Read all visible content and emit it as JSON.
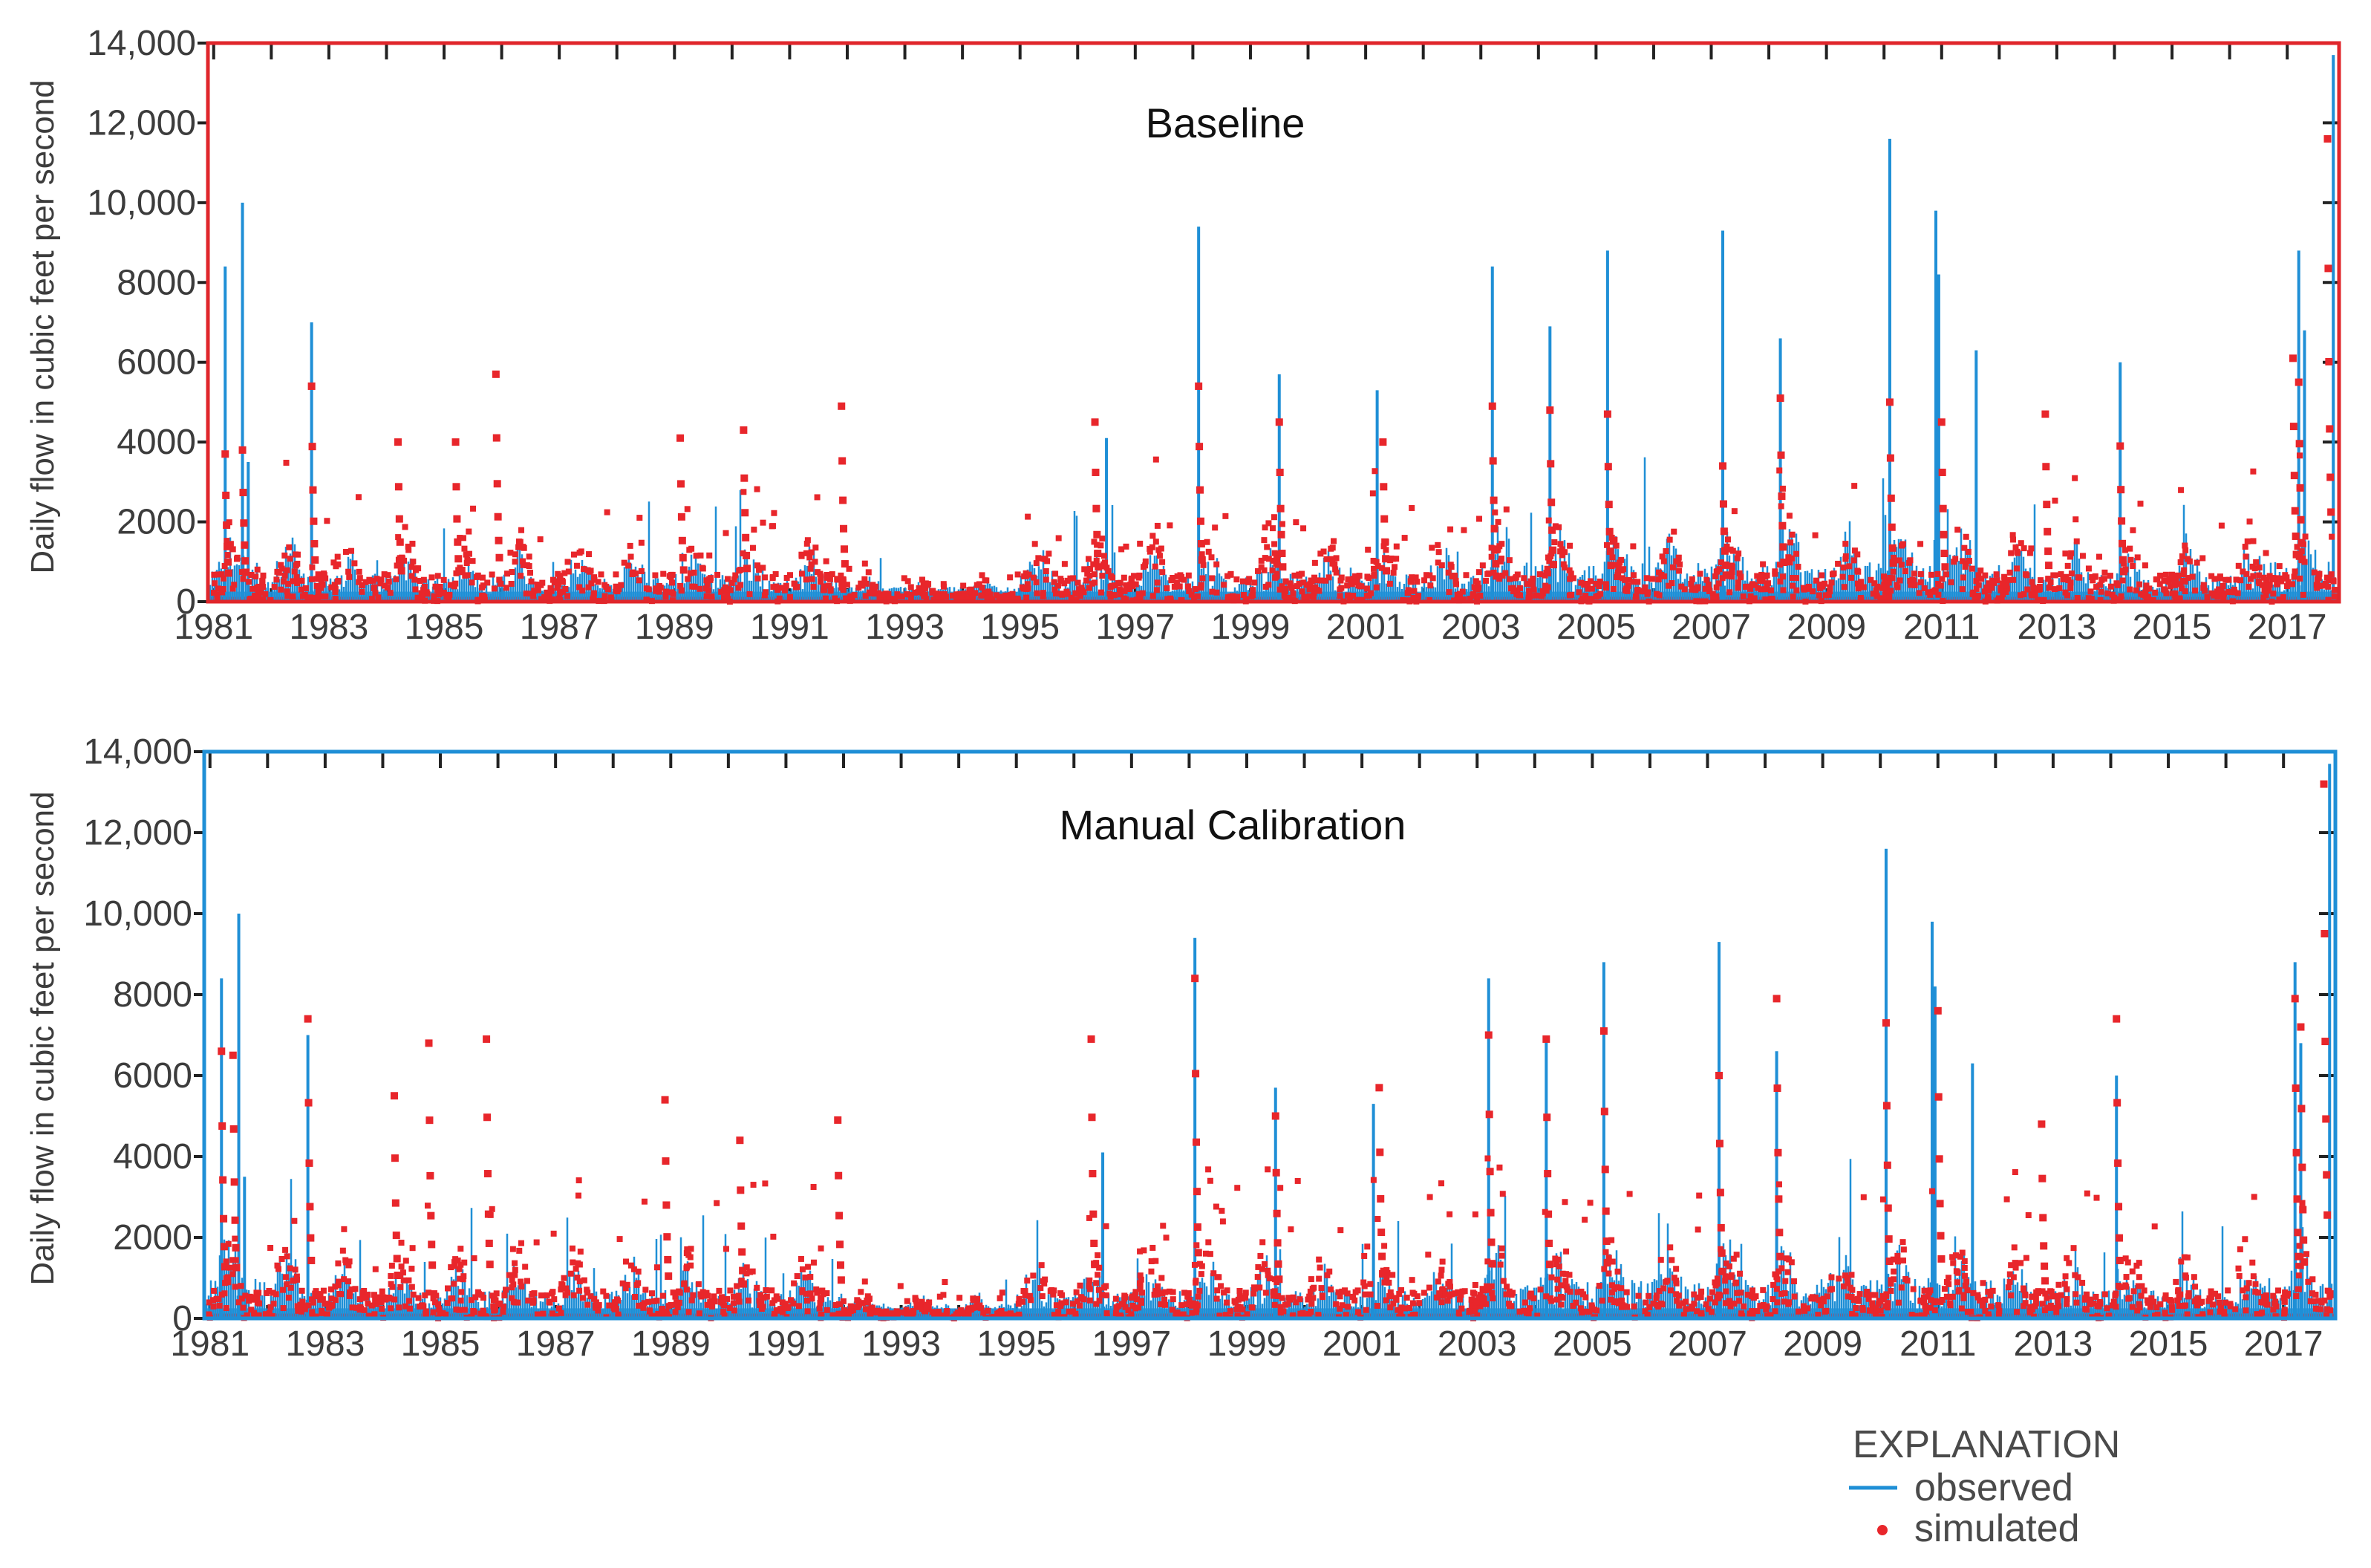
{
  "chart_data": [
    {
      "type": "line",
      "title": "Baseline",
      "xlabel": "",
      "ylabel": "Daily flow in cubic feet per second",
      "xlim": [
        1980.9,
        2017.9
      ],
      "ylim": [
        0,
        14000
      ],
      "x_tick_labels": [
        "1981",
        "1983",
        "1985",
        "1987",
        "1989",
        "1991",
        "1993",
        "1995",
        "1997",
        "1999",
        "2001",
        "2003",
        "2005",
        "2007",
        "2009",
        "2011",
        "2013",
        "2015",
        "2017"
      ],
      "y_ticks": [
        0,
        2000,
        4000,
        6000,
        8000,
        10000,
        12000,
        14000
      ],
      "y_tick_labels": [
        "0",
        "2000",
        "4000",
        "6000",
        "8000",
        "10,000",
        "12,000",
        "14,000"
      ],
      "frame_color": "#e0262b",
      "series": [
        {
          "name": "observed",
          "style": "line",
          "color": "#1f8fd6",
          "x": [
            1981.2,
            1981.5,
            1981.6,
            1982.7,
            1996.5,
            1998.1,
            1999.5,
            2001.2,
            2003.2,
            2004.2,
            2005.2,
            2007.2,
            2008.2,
            2010.1,
            2010.9,
            2010.95,
            2011.6,
            2014.1,
            2017.2,
            2017.3,
            2017.8
          ],
          "values": [
            8400,
            10000,
            3500,
            7000,
            4100,
            9400,
            5700,
            5300,
            8400,
            6900,
            8800,
            9300,
            6600,
            11600,
            9800,
            8200,
            6300,
            6000,
            8800,
            6800,
            13700
          ]
        },
        {
          "name": "simulated",
          "style": "markers",
          "color": "#e8262b",
          "x": [
            1981.2,
            1981.5,
            1982.7,
            1984.2,
            1985.2,
            1985.9,
            1989.1,
            1990.2,
            1991.9,
            1996.3,
            1998.1,
            1999.5,
            2001.3,
            2003.2,
            2004.2,
            2005.2,
            2007.2,
            2008.2,
            2010.1,
            2011.0,
            2012.8,
            2014.1,
            2017.1,
            2017.2,
            2017.7
          ],
          "values": [
            3700,
            3800,
            5400,
            4000,
            4000,
            5700,
            4100,
            4300,
            4900,
            4500,
            5400,
            4500,
            4000,
            4900,
            4800,
            4700,
            3400,
            5100,
            5000,
            4500,
            4700,
            3900,
            6100,
            5500,
            11600
          ]
        }
      ]
    },
    {
      "type": "line",
      "title": "Manual Calibration",
      "xlabel": "",
      "ylabel": "Daily flow in cubic feet per second",
      "xlim": [
        1980.9,
        2017.9
      ],
      "ylim": [
        0,
        14000
      ],
      "x_tick_labels": [
        "1981",
        "1983",
        "1985",
        "1987",
        "1989",
        "1991",
        "1993",
        "1995",
        "1997",
        "1999",
        "2001",
        "2003",
        "2005",
        "2007",
        "2009",
        "2011",
        "2013",
        "2015",
        "2017"
      ],
      "y_ticks": [
        0,
        2000,
        4000,
        6000,
        8000,
        10000,
        12000,
        14000
      ],
      "y_tick_labels": [
        "0",
        "2000",
        "4000",
        "6000",
        "8000",
        "10,000",
        "12,000",
        "14,000"
      ],
      "frame_color": "#1f8fd6",
      "series": [
        {
          "name": "observed",
          "style": "line",
          "color": "#1f8fd6",
          "x": [
            1981.2,
            1981.5,
            1981.6,
            1982.7,
            1996.5,
            1998.1,
            1999.5,
            2001.2,
            2003.2,
            2004.2,
            2005.2,
            2007.2,
            2008.2,
            2010.1,
            2010.9,
            2010.95,
            2011.6,
            2014.1,
            2017.2,
            2017.3,
            2017.8
          ],
          "values": [
            8400,
            10000,
            3500,
            7000,
            4100,
            9400,
            5700,
            5300,
            8400,
            6900,
            8800,
            9300,
            6600,
            11600,
            9800,
            8200,
            6300,
            6000,
            8800,
            6800,
            13700
          ]
        },
        {
          "name": "simulated",
          "style": "markers",
          "color": "#e8262b",
          "x": [
            1981.2,
            1981.4,
            1982.7,
            1984.2,
            1984.8,
            1985.8,
            1988.9,
            1990.2,
            1991.9,
            1996.3,
            1998.1,
            1999.5,
            2001.3,
            2003.2,
            2004.2,
            2005.2,
            2007.2,
            2008.2,
            2010.1,
            2011.0,
            2012.8,
            2014.1,
            2017.2,
            2017.3,
            2017.7
          ],
          "values": [
            6600,
            6500,
            7400,
            5500,
            6800,
            6900,
            5400,
            4400,
            4900,
            6900,
            8400,
            5000,
            5700,
            7000,
            6900,
            7100,
            6000,
            7900,
            7300,
            7600,
            4800,
            7400,
            7900,
            7200,
            13200
          ]
        }
      ]
    }
  ],
  "legend": {
    "title": "EXPLANATION",
    "items": [
      "observed",
      "simulated"
    ]
  }
}
